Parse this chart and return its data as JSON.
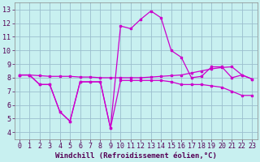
{
  "xlabel": "Windchill (Refroidissement éolien,°C)",
  "background_color": "#c8f0f0",
  "grid_color": "#9bbece",
  "line_color": "#cc00cc",
  "xlim": [
    -0.5,
    23.5
  ],
  "ylim": [
    3.5,
    13.5
  ],
  "xticks": [
    0,
    1,
    2,
    3,
    4,
    5,
    6,
    7,
    8,
    9,
    10,
    11,
    12,
    13,
    14,
    15,
    16,
    17,
    18,
    19,
    20,
    21,
    22,
    23
  ],
  "yticks": [
    4,
    5,
    6,
    7,
    8,
    9,
    10,
    11,
    12,
    13
  ],
  "series1_x": [
    0,
    1,
    2,
    3,
    4,
    5,
    6,
    7,
    8,
    9,
    10,
    11,
    12,
    13,
    14,
    15,
    16,
    17,
    18,
    19,
    20,
    21,
    22,
    23
  ],
  "series1_y": [
    8.2,
    8.2,
    8.15,
    8.1,
    8.1,
    8.1,
    8.05,
    8.05,
    8.0,
    8.0,
    8.0,
    8.0,
    8.0,
    8.05,
    8.1,
    8.15,
    8.2,
    8.35,
    8.5,
    8.65,
    8.75,
    8.8,
    8.2,
    7.9
  ],
  "series2_x": [
    0,
    1,
    2,
    3,
    4,
    5,
    6,
    7,
    8,
    9,
    10,
    11,
    12,
    13,
    14,
    15,
    16,
    17,
    18,
    19,
    20,
    21,
    22,
    23
  ],
  "series2_y": [
    8.2,
    8.2,
    7.5,
    7.5,
    5.5,
    4.8,
    7.7,
    7.7,
    7.7,
    4.3,
    7.8,
    7.8,
    7.8,
    7.8,
    7.8,
    7.7,
    7.5,
    7.5,
    7.5,
    7.4,
    7.3,
    7.0,
    6.7,
    6.7
  ],
  "series3_x": [
    0,
    1,
    2,
    3,
    4,
    5,
    6,
    7,
    8,
    9,
    10,
    11,
    12,
    13,
    14,
    15,
    16,
    17,
    18,
    19,
    20,
    21,
    22,
    23
  ],
  "series3_y": [
    8.2,
    8.2,
    7.5,
    7.5,
    5.5,
    4.8,
    7.7,
    7.7,
    7.7,
    4.3,
    11.8,
    11.6,
    12.3,
    12.9,
    12.4,
    10.0,
    9.5,
    8.0,
    8.1,
    8.8,
    8.8,
    8.0,
    8.2,
    7.9
  ],
  "xlabel_fontsize": 6.5,
  "tick_fontsize": 6.0,
  "marker_size": 2.0,
  "line_width": 0.9
}
